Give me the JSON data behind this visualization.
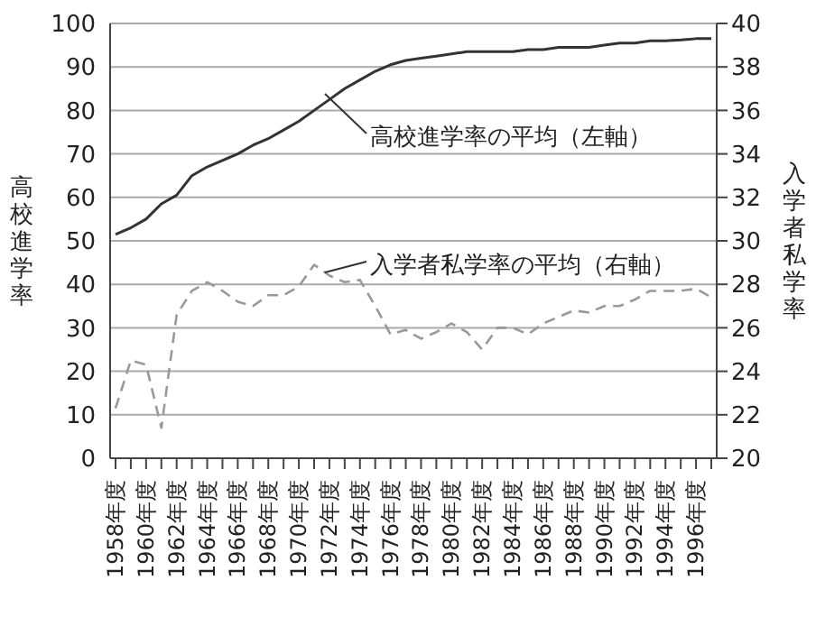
{
  "chart_data": {
    "type": "line",
    "categories": [
      "1958年度",
      null,
      "1960年度",
      null,
      "1962年度",
      null,
      "1964年度",
      null,
      "1966年度",
      null,
      "1968年度",
      null,
      "1970年度",
      null,
      "1972年度",
      null,
      "1974年度",
      null,
      "1976年度",
      null,
      "1978年度",
      null,
      "1980年度",
      null,
      "1982年度",
      null,
      "1984年度",
      null,
      "1986年度",
      null,
      "1988年度",
      null,
      "1990年度",
      null,
      "1992年度",
      null,
      "1994年度",
      null,
      "1996年度",
      null
    ],
    "series": [
      {
        "color": "#333333",
        "line_style": "solid",
        "values": [
          51.5,
          53,
          55,
          58.5,
          60.5,
          65,
          67,
          68.5,
          70,
          72,
          73.5,
          75.5,
          77.5,
          80,
          82.5,
          85,
          87,
          89,
          90.5,
          91.5,
          92,
          92.5,
          93,
          93.5,
          93.5,
          93.5,
          93.5,
          94,
          94,
          94.5,
          94.5,
          94.5,
          95,
          95.5,
          95.5,
          96,
          96,
          96.2,
          96.5,
          96.5
        ]
      },
      {
        "color": "#999999",
        "line_style": "dashed",
        "axis": "y2",
        "values": [
          22.3,
          24.5,
          24.3,
          21.4,
          26.6,
          27.7,
          28.1,
          27.7,
          27.2,
          27.0,
          27.5,
          27.5,
          27.9,
          28.9,
          28.4,
          28.1,
          28.2,
          27.0,
          25.7,
          25.9,
          25.5,
          25.8,
          26.2,
          25.8,
          25.0,
          26.0,
          26.0,
          25.7,
          26.2,
          26.5,
          26.8,
          26.7,
          27.0,
          27.0,
          27.3,
          27.7,
          27.7,
          27.7,
          27.8,
          27.4
        ]
      }
    ],
    "ylabel": "高校進学率",
    "y2label": "入学者私学率",
    "ylim": [
      0,
      100
    ],
    "yticks": [
      0,
      10,
      20,
      30,
      40,
      50,
      60,
      70,
      80,
      90,
      100
    ],
    "y2lim": [
      20,
      40
    ],
    "y2ticks": [
      20,
      22,
      24,
      26,
      28,
      30,
      32,
      34,
      36,
      38,
      40
    ],
    "grid": "y",
    "legend": false,
    "marker": "none",
    "annotations": [
      "高校進学率の平均（左軸）",
      "入学者私学率の平均（右軸）"
    ]
  }
}
